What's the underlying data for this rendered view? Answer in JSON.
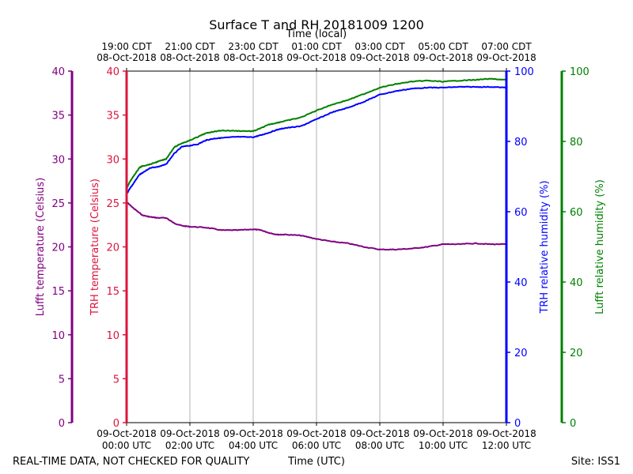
{
  "chart_data": {
    "type": "line",
    "title": "Surface T and RH 20181009 1200",
    "top_axis_label": "Time (local)",
    "xlabel": "Time (UTC)",
    "xlim": [
      "2018-10-09 00:00 UTC",
      "2018-10-09 12:00 UTC"
    ],
    "grid": "vertical",
    "footer_left": "REAL-TIME DATA, NOT CHECKED FOR QUALITY",
    "footer_right": "Site: ISS1",
    "top_ticks": [
      {
        "hour": 0,
        "line1": "19:00 CDT",
        "line2": "08-Oct-2018"
      },
      {
        "hour": 2,
        "line1": "21:00 CDT",
        "line2": "08-Oct-2018"
      },
      {
        "hour": 4,
        "line1": "23:00 CDT",
        "line2": "08-Oct-2018"
      },
      {
        "hour": 6,
        "line1": "01:00 CDT",
        "line2": "09-Oct-2018"
      },
      {
        "hour": 8,
        "line1": "03:00 CDT",
        "line2": "09-Oct-2018"
      },
      {
        "hour": 10,
        "line1": "05:00 CDT",
        "line2": "09-Oct-2018"
      },
      {
        "hour": 12,
        "line1": "07:00 CDT",
        "line2": "09-Oct-2018"
      }
    ],
    "bottom_ticks": [
      {
        "hour": 0,
        "line1": "09-Oct-2018",
        "line2": "00:00 UTC"
      },
      {
        "hour": 2,
        "line1": "09-Oct-2018",
        "line2": "02:00 UTC"
      },
      {
        "hour": 4,
        "line1": "09-Oct-2018",
        "line2": "04:00 UTC"
      },
      {
        "hour": 6,
        "line1": "09-Oct-2018",
        "line2": "06:00 UTC"
      },
      {
        "hour": 8,
        "line1": "09-Oct-2018",
        "line2": "08:00 UTC"
      },
      {
        "hour": 10,
        "line1": "09-Oct-2018",
        "line2": "10:00 UTC"
      },
      {
        "hour": 12,
        "line1": "09-Oct-2018",
        "line2": "12:00 UTC"
      }
    ],
    "axes": {
      "lufft_temp": {
        "label": "Lufft temperature (Celsius)",
        "color": "#800080",
        "ylim": [
          0,
          40
        ],
        "ticks": [
          0,
          5,
          10,
          15,
          20,
          25,
          30,
          35,
          40
        ]
      },
      "trh_temp": {
        "label": "TRH temperature (Celsius)",
        "color": "#dc143c",
        "ylim": [
          0,
          40
        ],
        "ticks": [
          0,
          5,
          10,
          15,
          20,
          25,
          30,
          35,
          40
        ]
      },
      "trh_rh": {
        "label": "TRH relative humidity (%)",
        "color": "#0000ff",
        "ylim": [
          0,
          100
        ],
        "ticks": [
          0,
          20,
          40,
          60,
          80,
          100
        ]
      },
      "lufft_rh": {
        "label": "Lufft relative humidity (%)",
        "color": "#008000",
        "ylim": [
          0,
          100
        ],
        "ticks": [
          0,
          20,
          40,
          60,
          80,
          100
        ]
      }
    },
    "series": [
      {
        "axis": "lufft_temp",
        "color": "#800080",
        "x_hours": [
          0,
          0.25,
          0.5,
          0.75,
          1,
          1.25,
          1.5,
          1.75,
          2,
          2.5,
          3,
          3.5,
          4,
          4.25,
          4.5,
          4.75,
          5,
          5.5,
          6,
          6.5,
          7,
          7.5,
          8,
          8.5,
          9,
          9.5,
          10,
          10.5,
          11,
          11.5,
          12
        ],
        "values": [
          25.1,
          24.3,
          23.6,
          23.4,
          23.3,
          23.3,
          22.7,
          22.4,
          22.3,
          22.2,
          21.9,
          21.9,
          22.0,
          21.9,
          21.6,
          21.4,
          21.4,
          21.3,
          20.9,
          20.6,
          20.4,
          20.0,
          19.7,
          19.7,
          19.8,
          20.0,
          20.3,
          20.3,
          20.4,
          20.3,
          20.3
        ]
      },
      {
        "axis": "trh_rh",
        "color": "#0000ff",
        "x_hours": [
          0,
          0.1,
          0.25,
          0.4,
          0.5,
          0.75,
          1,
          1.25,
          1.5,
          1.75,
          2,
          2.25,
          2.5,
          2.75,
          3,
          3.5,
          4,
          4.25,
          4.5,
          4.75,
          5,
          5.5,
          6,
          6.5,
          7,
          7.5,
          8,
          8.5,
          9,
          9.5,
          10,
          10.5,
          11,
          11.5,
          12
        ],
        "values": [
          65.0,
          66.5,
          68.5,
          70.5,
          71.0,
          72.5,
          72.8,
          73.5,
          76.5,
          78.5,
          78.8,
          79.2,
          80.3,
          80.8,
          81.0,
          81.3,
          81.2,
          81.8,
          82.5,
          83.3,
          83.8,
          84.3,
          86.3,
          88.3,
          89.6,
          91.3,
          93.3,
          94.3,
          95.0,
          95.3,
          95.3,
          95.5,
          95.5,
          95.5,
          95.3
        ]
      },
      {
        "axis": "lufft_rh",
        "color": "#008000",
        "x_hours": [
          0,
          0.1,
          0.25,
          0.4,
          0.5,
          0.75,
          1,
          1.25,
          1.5,
          1.75,
          2,
          2.25,
          2.5,
          2.75,
          3,
          3.5,
          4,
          4.25,
          4.5,
          4.75,
          5,
          5.5,
          6,
          6.5,
          7,
          7.5,
          8,
          8.5,
          9,
          9.5,
          10,
          10.5,
          11,
          11.5,
          12
        ],
        "values": [
          66.5,
          68.5,
          70.5,
          72.5,
          73.0,
          73.5,
          74.3,
          75.0,
          78.3,
          79.5,
          80.3,
          81.3,
          82.3,
          82.8,
          83.1,
          83.0,
          82.9,
          83.8,
          84.8,
          85.3,
          85.8,
          86.8,
          88.8,
          90.5,
          91.8,
          93.5,
          95.3,
          96.3,
          97.0,
          97.3,
          97.0,
          97.3,
          97.5,
          97.8,
          97.5
        ]
      }
    ]
  }
}
